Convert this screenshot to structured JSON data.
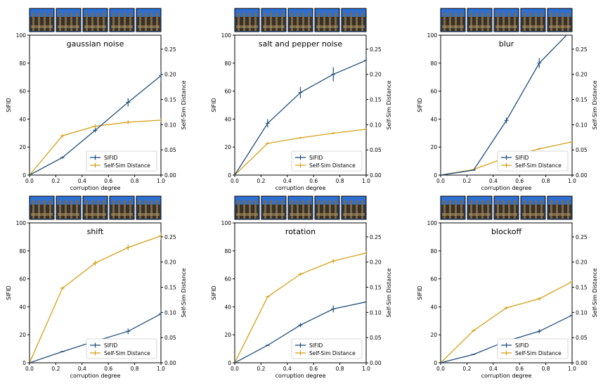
{
  "colors": {
    "sifid": "#1f4e79",
    "selfsim": "#d4a017",
    "axis": "#000000"
  },
  "chart_data": [
    {
      "type": "line",
      "title": "gaussian noise",
      "xlabel": "corruption degree",
      "ylabel": "SIFID",
      "y2label": "Self-Sim Distance",
      "x": [
        0.0,
        0.25,
        0.5,
        0.75,
        1.0
      ],
      "xlim": [
        0,
        1
      ],
      "ylim": [
        0,
        100
      ],
      "y2lim": [
        0,
        0.2778
      ],
      "xticks": [
        "0.0",
        "0.2",
        "0.4",
        "0.6",
        "0.8",
        "1.0"
      ],
      "yticks": [
        "0",
        "20",
        "40",
        "60",
        "80",
        "100"
      ],
      "y2ticks": [
        "0.00",
        "0.05",
        "0.10",
        "0.15",
        "0.20",
        "0.25"
      ],
      "legend": "lower-right",
      "thumbnails": 5,
      "series": [
        {
          "name": "SIFID",
          "axis": "left",
          "values": [
            0,
            12.5,
            32,
            52,
            71
          ],
          "err": [
            0,
            0.8,
            1.5,
            3,
            4
          ]
        },
        {
          "name": "Self-Sim Distance",
          "axis": "right",
          "values": [
            0,
            0.078,
            0.097,
            0.105,
            0.109
          ],
          "err": [
            0,
            0.003,
            0.004,
            0.004,
            0.004
          ]
        }
      ]
    },
    {
      "type": "line",
      "title": "salt and pepper noise",
      "xlabel": "corruption degree",
      "ylabel": "SIFID",
      "y2label": "Self-Sim Distance",
      "x": [
        0.0,
        0.25,
        0.5,
        0.75,
        1.0
      ],
      "xlim": [
        0,
        1
      ],
      "ylim": [
        0,
        100
      ],
      "y2lim": [
        0,
        0.2778
      ],
      "xticks": [
        "0.0",
        "0.2",
        "0.4",
        "0.6",
        "0.8",
        "1.0"
      ],
      "yticks": [
        "0",
        "20",
        "40",
        "60",
        "80",
        "100"
      ],
      "y2ticks": [
        "0.00",
        "0.05",
        "0.10",
        "0.15",
        "0.20",
        "0.25"
      ],
      "legend": "lower-right",
      "thumbnails": 5,
      "series": [
        {
          "name": "SIFID",
          "axis": "left",
          "values": [
            0,
            37,
            59,
            72,
            82
          ],
          "err": [
            0,
            3,
            4,
            5,
            5
          ]
        },
        {
          "name": "Self-Sim Distance",
          "axis": "right",
          "values": [
            0,
            0.063,
            0.074,
            0.083,
            0.091
          ],
          "err": [
            0,
            0.002,
            0.002,
            0.002,
            0.002
          ]
        }
      ]
    },
    {
      "type": "line",
      "title": "blur",
      "xlabel": "corruption degree",
      "ylabel": "SIFID",
      "y2label": "Self-Sim Distance",
      "x": [
        0.0,
        0.25,
        0.5,
        0.75,
        1.0
      ],
      "xlim": [
        0,
        1
      ],
      "ylim": [
        0,
        100
      ],
      "y2lim": [
        0,
        0.2778
      ],
      "xticks": [
        "0.0",
        "0.2",
        "0.4",
        "0.6",
        "0.8",
        "1.0"
      ],
      "yticks": [
        "0",
        "20",
        "40",
        "60",
        "80",
        "100"
      ],
      "y2ticks": [
        "0.00",
        "0.05",
        "0.10",
        "0.15",
        "0.20",
        "0.25"
      ],
      "legend": "lower-right",
      "thumbnails": 5,
      "series": [
        {
          "name": "SIFID",
          "axis": "left",
          "values": [
            0,
            3.5,
            39,
            80,
            104
          ],
          "err": [
            0,
            0.5,
            2,
            3.5,
            3
          ]
        },
        {
          "name": "Self-Sim Distance",
          "axis": "right",
          "values": [
            0,
            0.011,
            0.035,
            0.052,
            0.066
          ],
          "err": [
            0,
            0.001,
            0.002,
            0.002,
            0.002
          ]
        }
      ]
    },
    {
      "type": "line",
      "title": "shift",
      "xlabel": "corruption degree",
      "ylabel": "SIFID",
      "y2label": "Self-Sim Distance",
      "x": [
        0.0,
        0.25,
        0.5,
        0.75,
        1.0
      ],
      "xlim": [
        0,
        1
      ],
      "ylim": [
        0,
        100
      ],
      "y2lim": [
        0,
        0.2778
      ],
      "xticks": [
        "0.0",
        "0.2",
        "0.4",
        "0.6",
        "0.8",
        "1.0"
      ],
      "yticks": [
        "0",
        "20",
        "40",
        "60",
        "80",
        "100"
      ],
      "y2ticks": [
        "0.00",
        "0.05",
        "0.10",
        "0.15",
        "0.20",
        "0.25"
      ],
      "legend": "lower-right",
      "thumbnails": 5,
      "series": [
        {
          "name": "SIFID",
          "axis": "left",
          "values": [
            0,
            8,
            15.5,
            22.5,
            35
          ],
          "err": [
            0,
            0.5,
            1,
            2,
            4
          ]
        },
        {
          "name": "Self-Sim Distance",
          "axis": "right",
          "values": [
            0,
            0.148,
            0.198,
            0.229,
            0.252
          ],
          "err": [
            0,
            0.003,
            0.005,
            0.006,
            0.008
          ]
        }
      ]
    },
    {
      "type": "line",
      "title": "rotation",
      "xlabel": "corruption degree",
      "ylabel": "SIFID",
      "y2label": "Self-Sim Distance",
      "x": [
        0.0,
        0.25,
        0.5,
        0.75,
        1.0
      ],
      "xlim": [
        0,
        1
      ],
      "ylim": [
        0,
        100
      ],
      "y2lim": [
        0,
        0.2778
      ],
      "xticks": [
        "0.0",
        "0.2",
        "0.4",
        "0.6",
        "0.8",
        "1.0"
      ],
      "yticks": [
        "0",
        "20",
        "40",
        "60",
        "80",
        "100"
      ],
      "y2ticks": [
        "0.00",
        "0.05",
        "0.10",
        "0.15",
        "0.20",
        "0.25"
      ],
      "legend": "lower-right",
      "thumbnails": 5,
      "series": [
        {
          "name": "SIFID",
          "axis": "left",
          "values": [
            0,
            12.5,
            27,
            38.5,
            43.5
          ],
          "err": [
            0,
            0.6,
            1.5,
            2.5,
            3
          ]
        },
        {
          "name": "Self-Sim Distance",
          "axis": "right",
          "values": [
            0,
            0.131,
            0.176,
            0.202,
            0.218
          ],
          "err": [
            0,
            0.002,
            0.003,
            0.004,
            0.005
          ]
        }
      ]
    },
    {
      "type": "line",
      "title": "blockoff",
      "xlabel": "corruption degree",
      "ylabel": "SIFID",
      "y2label": "Self-Sim Distance",
      "x": [
        0.0,
        0.25,
        0.5,
        0.75,
        1.0
      ],
      "xlim": [
        0,
        1
      ],
      "ylim": [
        0,
        100
      ],
      "y2lim": [
        0,
        0.2778
      ],
      "xticks": [
        "0.0",
        "0.2",
        "0.4",
        "0.6",
        "0.8",
        "1.0"
      ],
      "yticks": [
        "0",
        "20",
        "40",
        "60",
        "80",
        "100"
      ],
      "y2ticks": [
        "0.00",
        "0.05",
        "0.10",
        "0.15",
        "0.20",
        "0.25"
      ],
      "legend": "lower-right",
      "thumbnails": 5,
      "series": [
        {
          "name": "SIFID",
          "axis": "left",
          "values": [
            0,
            6,
            15.5,
            22.5,
            34
          ],
          "err": [
            0,
            0.5,
            1,
            1.5,
            2
          ]
        },
        {
          "name": "Self-Sim Distance",
          "axis": "right",
          "values": [
            0,
            0.064,
            0.109,
            0.127,
            0.161
          ],
          "err": [
            0,
            0.002,
            0.003,
            0.003,
            0.003
          ]
        }
      ]
    }
  ]
}
